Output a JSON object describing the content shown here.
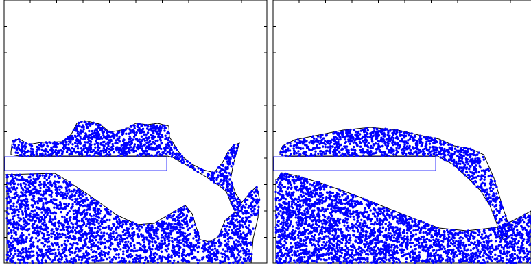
{
  "figure": {
    "panels": [
      {
        "id": "left",
        "particle_color": "#0000ff",
        "outline_color": "#000000",
        "plate_color": "#3333ff"
      },
      {
        "id": "right",
        "particle_color": "#0000ff",
        "outline_color": "#000000",
        "plate_color": "#3333ff"
      }
    ]
  }
}
